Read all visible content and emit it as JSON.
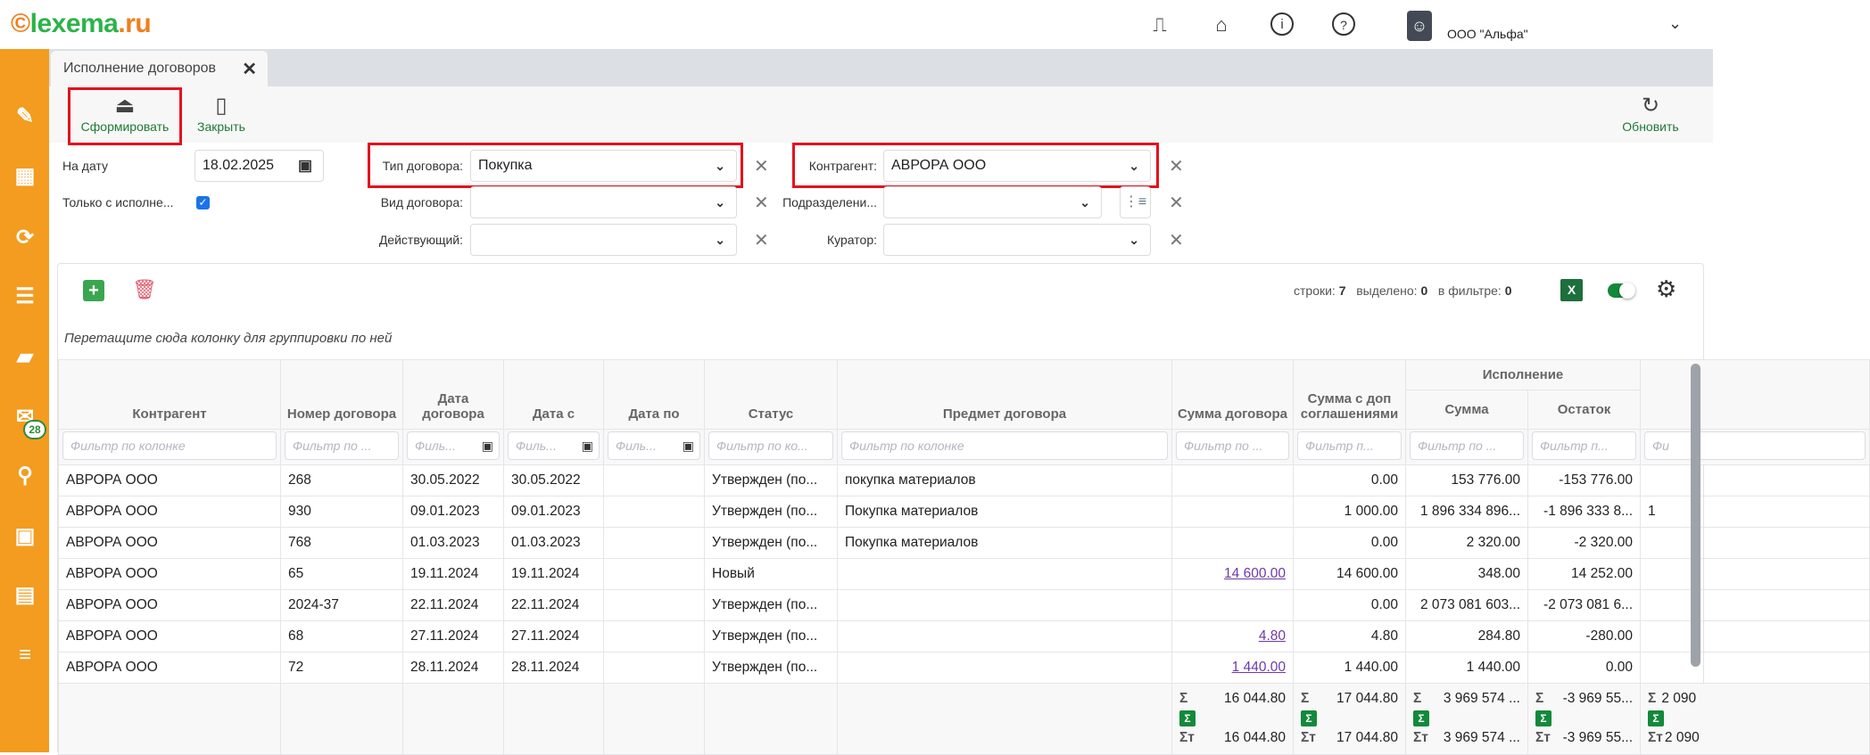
{
  "app": {
    "logo": "lexema.ru",
    "org": "ООО \"Альфа\"",
    "icons": [
      "document-icon",
      "home-icon",
      "info-icon",
      "help-icon"
    ]
  },
  "sidebar": {
    "items": [
      "pencil-icon",
      "qr-code-icon",
      "sync-icon",
      "list-download-icon",
      "folder-icon",
      "mail-icon",
      "search-icon",
      "calendar-icon",
      "table-clock-icon",
      "list-check-icon"
    ],
    "mail_badge": "28"
  },
  "tab": {
    "title": "Исполнение договоров"
  },
  "toolbar": {
    "generate": "Сформировать",
    "close": "Закрыть",
    "refresh": "Обновить"
  },
  "filters": {
    "date_label": "На дату",
    "date_value": "18.02.2025",
    "only_label": "Только с исполне...",
    "only_checked": true,
    "type_label": "Тип договора:",
    "type_value": "Покупка",
    "kind_label": "Вид договора:",
    "kind_value": "",
    "active_label": "Действующий:",
    "active_value": "",
    "counterparty_label": "Контрагент:",
    "counterparty_value": "АВРОРА ООО",
    "division_label": "Подразделени...",
    "division_value": "",
    "curator_label": "Куратор:",
    "curator_value": ""
  },
  "grid": {
    "rows_label": "строки:",
    "rows": "7",
    "selected_label": "выделено:",
    "selected": "0",
    "filtered_label": "в фильтре:",
    "filtered": "0",
    "excel": "X",
    "group_hint": "Перетащите сюда колонку для группировки по ней",
    "group_header": "Исполнение",
    "columns": [
      "Контрагент",
      "Номер договора",
      "Дата договора",
      "Дата с",
      "Дата по",
      "Статус",
      "Предмет договора",
      "Сумма договора",
      "Сумма с доп соглашениями",
      "Сумма",
      "Остаток",
      ""
    ],
    "filter_placeholders": [
      "Фильтр по колонке",
      "Фильтр по ...",
      "Филь...",
      "Филь...",
      "Филь...",
      "Фильтр по ко...",
      "Фильтр по колонке",
      "Фильтр по ...",
      "Фильтр п...",
      "Фильтр по ...",
      "Фильтр п...",
      "Фи"
    ],
    "data": [
      [
        "АВРОРА ООО",
        "268",
        "30.05.2022",
        "30.05.2022",
        "",
        "Утвержден (по...",
        "покупка материалов",
        "",
        "0.00",
        "153 776.00",
        "-153 776.00",
        ""
      ],
      [
        "АВРОРА ООО",
        "930",
        "09.01.2023",
        "09.01.2023",
        "",
        "Утвержден (по...",
        "Покупка материалов",
        "",
        "1 000.00",
        "1 896 334 896...",
        "-1 896 333 8...",
        "1"
      ],
      [
        "АВРОРА ООО",
        "768",
        "01.03.2023",
        "01.03.2023",
        "",
        "Утвержден (по...",
        "Покупка материалов",
        "",
        "0.00",
        "2 320.00",
        "-2 320.00",
        ""
      ],
      [
        "АВРОРА ООО",
        "65",
        "19.11.2024",
        "19.11.2024",
        "",
        "Новый",
        "",
        "14 600.00",
        "14 600.00",
        "348.00",
        "14 252.00",
        ""
      ],
      [
        "АВРОРА ООО",
        "2024-37",
        "22.11.2024",
        "22.11.2024",
        "",
        "Утвержден (по...",
        "",
        "",
        "0.00",
        "2 073 081 603...",
        "-2 073 081 6...",
        ""
      ],
      [
        "АВРОРА ООО",
        "68",
        "27.11.2024",
        "27.11.2024",
        "",
        "Утвержден (по...",
        "",
        "4.80",
        "4.80",
        "284.80",
        "-280.00",
        ""
      ],
      [
        "АВРОРА ООО",
        "72",
        "28.11.2024",
        "28.11.2024",
        "",
        "Утвержден (по...",
        "",
        "1 440.00",
        "1 440.00",
        "1 440.00",
        "0.00",
        ""
      ]
    ],
    "totals": [
      {
        "col": 7,
        "sum": "16 044.80",
        "filtered": "16 044.80"
      },
      {
        "col": 8,
        "sum": "17 044.80",
        "filtered": "17 044.80"
      },
      {
        "col": 9,
        "sum": "3 969 574 ...",
        "filtered": "3 969 574 ..."
      },
      {
        "col": 10,
        "sum": "-3 969 55...",
        "filtered": "-3 969 55..."
      },
      {
        "col": 11,
        "sum": "2 090",
        "filtered": "2 090"
      }
    ],
    "sigma": "Σ",
    "sigma_filtered": "Σт"
  },
  "colors": {
    "sidebar": "#f39c1f",
    "accent_green": "#1f7a35",
    "link": "#6f3aa6",
    "highlight": "#e3111d"
  }
}
